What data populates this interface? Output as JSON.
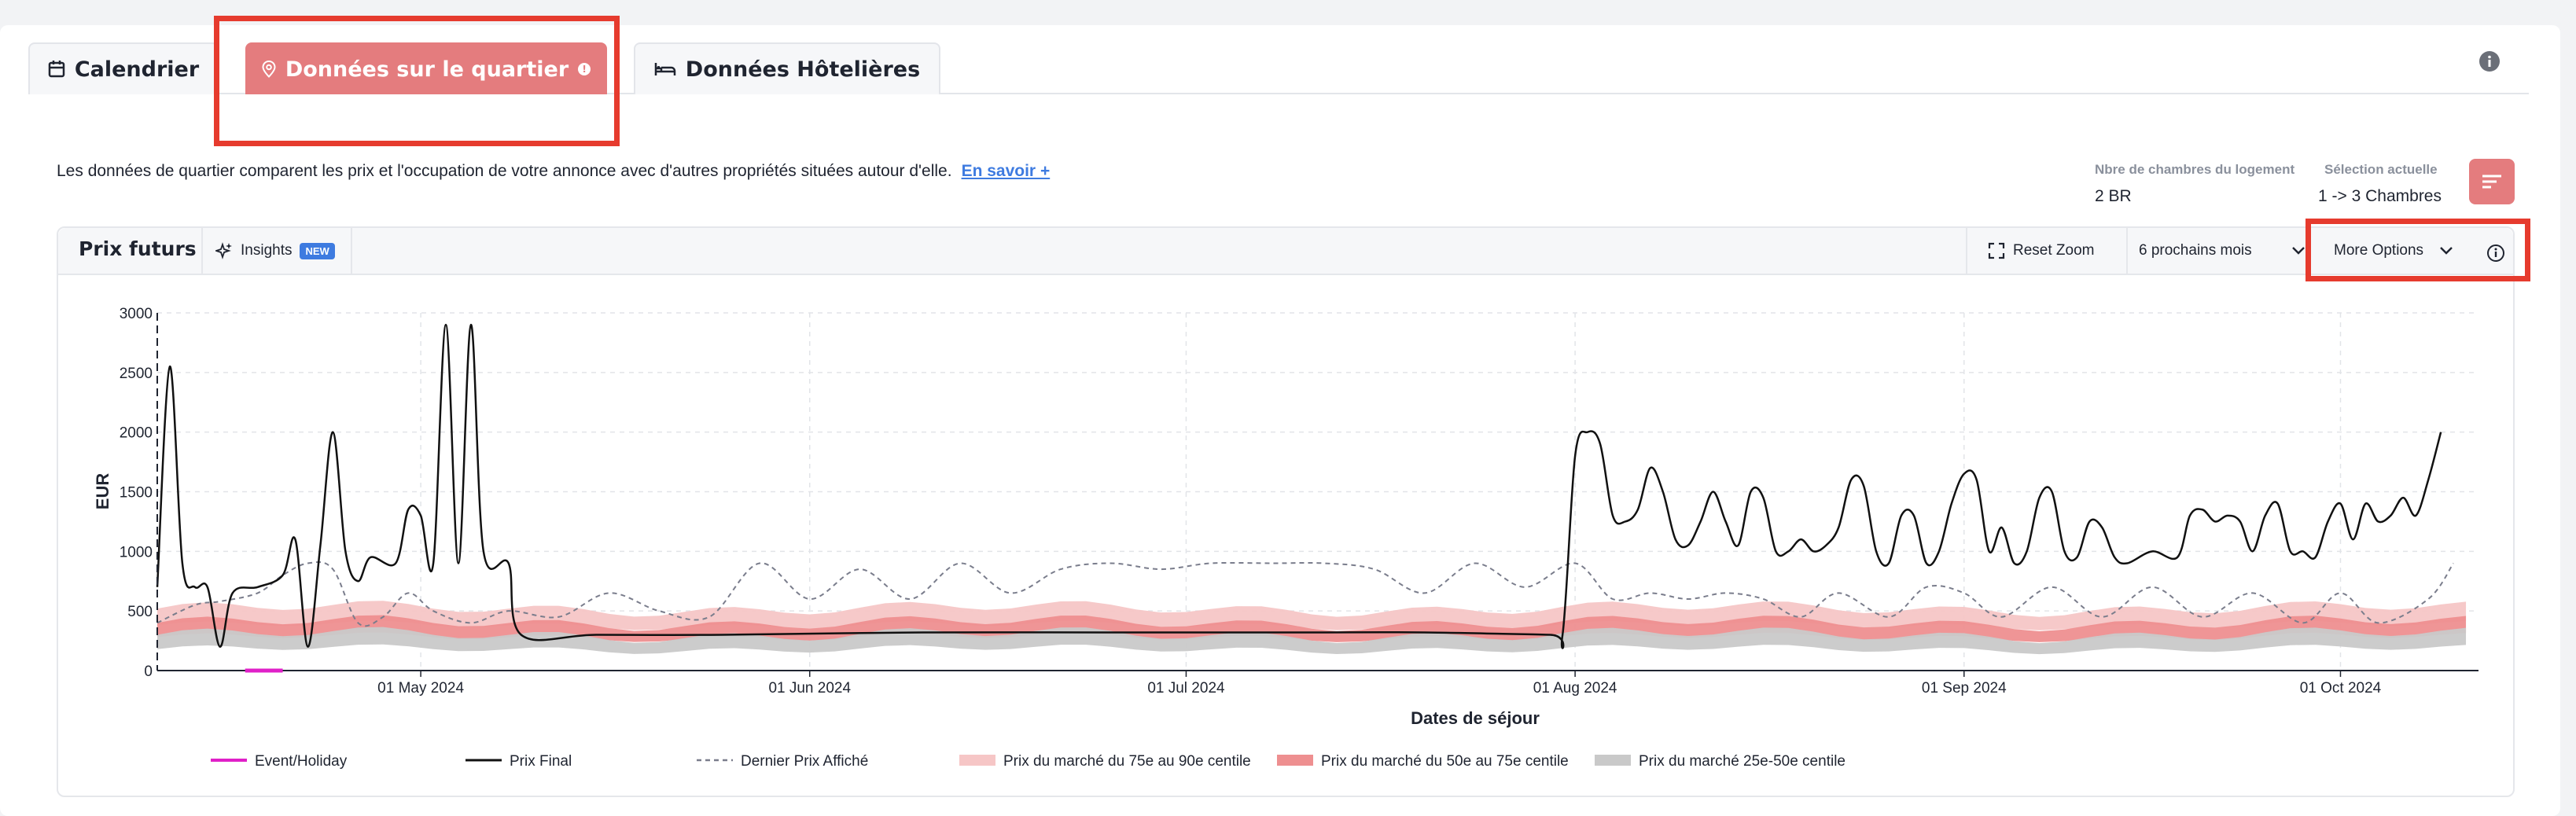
{
  "tabs": [
    {
      "label": "Calendrier",
      "icon": "calendar-icon",
      "active": false
    },
    {
      "label": "Données sur le quartier",
      "icon": "map-pin-icon",
      "active": true
    },
    {
      "label": "Données Hôtelières",
      "icon": "bed-icon",
      "active": false
    }
  ],
  "intro": {
    "text": "Les données de quartier comparent les prix et l'occupation de votre annonce avec d'autres propriétés situées autour d'elle.",
    "link": "En savoir +"
  },
  "meta": {
    "rooms_label": "Nbre de chambres du logement",
    "rooms_value": "2 BR",
    "selection_label": "Sélection actuelle",
    "selection_value": "1 -> 3 Chambres"
  },
  "panel": {
    "title": "Prix futurs",
    "insights_label": "Insights",
    "insights_badge": "NEW",
    "reset_zoom": "Reset Zoom",
    "period": "6 prochains mois",
    "more_options": "More Options"
  },
  "colors": {
    "accent": "#e47c7e",
    "highlight_box": "#e63b2e",
    "prix_final": "#111111",
    "dernier_prix": "#7a7d8c",
    "band_75_90": "#f6c6c6",
    "band_50_75": "#ee8f90",
    "band_25_50": "#c9c9c9",
    "event": "#e020c8"
  },
  "chart_data": {
    "type": "line",
    "xlabel": "Dates de séjour",
    "ylabel": "EUR",
    "x_range": [
      "2024-04-10",
      "2024-10-12"
    ],
    "ylim": [
      0,
      3000
    ],
    "yticks": [
      0,
      500,
      1000,
      1500,
      2000,
      2500,
      3000
    ],
    "xticks": [
      {
        "date": "2024-05-01",
        "label": "01 May 2024"
      },
      {
        "date": "2024-06-01",
        "label": "01 Jun 2024"
      },
      {
        "date": "2024-07-01",
        "label": "01 Jul 2024"
      },
      {
        "date": "2024-08-01",
        "label": "01 Aug 2024"
      },
      {
        "date": "2024-09-01",
        "label": "01 Sep 2024"
      },
      {
        "date": "2024-10-01",
        "label": "01 Oct 2024"
      }
    ],
    "grid": true,
    "legend_position": "bottom",
    "event_marker": {
      "from": "2024-04-17",
      "to": "2024-04-20"
    },
    "series": [
      {
        "name": "Prix Final",
        "style": "solid",
        "points": [
          [
            "2024-04-10",
            700
          ],
          [
            "2024-04-11",
            2550
          ],
          [
            "2024-04-12",
            900
          ],
          [
            "2024-04-13",
            700
          ],
          [
            "2024-04-14",
            700
          ],
          [
            "2024-04-15",
            200
          ],
          [
            "2024-04-16",
            650
          ],
          [
            "2024-04-18",
            700
          ],
          [
            "2024-04-20",
            800
          ],
          [
            "2024-04-21",
            1100
          ],
          [
            "2024-04-22",
            200
          ],
          [
            "2024-04-23",
            1050
          ],
          [
            "2024-04-24",
            2000
          ],
          [
            "2024-04-25",
            1000
          ],
          [
            "2024-04-26",
            750
          ],
          [
            "2024-04-27",
            950
          ],
          [
            "2024-04-29",
            900
          ],
          [
            "2024-04-30",
            1350
          ],
          [
            "2024-05-01",
            1300
          ],
          [
            "2024-05-02",
            900
          ],
          [
            "2024-05-03",
            2900
          ],
          [
            "2024-05-04",
            900
          ],
          [
            "2024-05-05",
            2900
          ],
          [
            "2024-05-06",
            1000
          ],
          [
            "2024-05-08",
            900
          ],
          [
            "2024-05-09",
            300
          ],
          [
            "2024-05-15",
            300
          ],
          [
            "2024-05-25",
            300
          ],
          [
            "2024-06-10",
            320
          ],
          [
            "2024-06-25",
            320
          ],
          [
            "2024-07-10",
            320
          ],
          [
            "2024-07-20",
            320
          ],
          [
            "2024-07-30",
            300
          ],
          [
            "2024-07-31",
            300
          ],
          [
            "2024-08-01",
            1800
          ],
          [
            "2024-08-02",
            2000
          ],
          [
            "2024-08-03",
            1900
          ],
          [
            "2024-08-04",
            1300
          ],
          [
            "2024-08-05",
            1250
          ],
          [
            "2024-08-06",
            1350
          ],
          [
            "2024-08-07",
            1700
          ],
          [
            "2024-08-08",
            1500
          ],
          [
            "2024-08-09",
            1100
          ],
          [
            "2024-08-10",
            1050
          ],
          [
            "2024-08-11",
            1250
          ],
          [
            "2024-08-12",
            1500
          ],
          [
            "2024-08-13",
            1250
          ],
          [
            "2024-08-14",
            1050
          ],
          [
            "2024-08-15",
            1500
          ],
          [
            "2024-08-16",
            1450
          ],
          [
            "2024-08-17",
            1000
          ],
          [
            "2024-08-18",
            1000
          ],
          [
            "2024-08-19",
            1100
          ],
          [
            "2024-08-20",
            1000
          ],
          [
            "2024-08-21",
            1050
          ],
          [
            "2024-08-22",
            1200
          ],
          [
            "2024-08-23",
            1600
          ],
          [
            "2024-08-24",
            1550
          ],
          [
            "2024-08-25",
            1000
          ],
          [
            "2024-08-26",
            900
          ],
          [
            "2024-08-27",
            1300
          ],
          [
            "2024-08-28",
            1300
          ],
          [
            "2024-08-29",
            900
          ],
          [
            "2024-08-30",
            1000
          ],
          [
            "2024-08-31",
            1400
          ],
          [
            "2024-09-01",
            1650
          ],
          [
            "2024-09-02",
            1600
          ],
          [
            "2024-09-03",
            1000
          ],
          [
            "2024-09-04",
            1200
          ],
          [
            "2024-09-05",
            900
          ],
          [
            "2024-09-06",
            1000
          ],
          [
            "2024-09-07",
            1450
          ],
          [
            "2024-09-08",
            1500
          ],
          [
            "2024-09-09",
            1000
          ],
          [
            "2024-09-10",
            950
          ],
          [
            "2024-09-11",
            1250
          ],
          [
            "2024-09-12",
            1200
          ],
          [
            "2024-09-13",
            950
          ],
          [
            "2024-09-14",
            900
          ],
          [
            "2024-09-16",
            1000
          ],
          [
            "2024-09-18",
            950
          ],
          [
            "2024-09-19",
            1300
          ],
          [
            "2024-09-20",
            1350
          ],
          [
            "2024-09-21",
            1250
          ],
          [
            "2024-09-22",
            1300
          ],
          [
            "2024-09-23",
            1250
          ],
          [
            "2024-09-24",
            1000
          ],
          [
            "2024-09-25",
            1300
          ],
          [
            "2024-09-26",
            1400
          ],
          [
            "2024-09-27",
            1000
          ],
          [
            "2024-09-28",
            1000
          ],
          [
            "2024-09-29",
            950
          ],
          [
            "2024-09-30",
            1250
          ],
          [
            "2024-10-01",
            1400
          ],
          [
            "2024-10-02",
            1100
          ],
          [
            "2024-10-03",
            1400
          ],
          [
            "2024-10-04",
            1250
          ],
          [
            "2024-10-05",
            1300
          ],
          [
            "2024-10-06",
            1450
          ],
          [
            "2024-10-07",
            1300
          ],
          [
            "2024-10-08",
            1600
          ],
          [
            "2024-10-09",
            2000
          ]
        ]
      },
      {
        "name": "Dernier Prix Affiché",
        "style": "dashed",
        "points": [
          [
            "2024-04-10",
            400
          ],
          [
            "2024-04-13",
            550
          ],
          [
            "2024-04-15",
            580
          ],
          [
            "2024-04-18",
            650
          ],
          [
            "2024-04-20",
            800
          ],
          [
            "2024-04-22",
            900
          ],
          [
            "2024-04-24",
            850
          ],
          [
            "2024-04-26",
            400
          ],
          [
            "2024-04-28",
            450
          ],
          [
            "2024-04-30",
            650
          ],
          [
            "2024-05-02",
            500
          ],
          [
            "2024-05-05",
            400
          ],
          [
            "2024-05-08",
            500
          ],
          [
            "2024-05-12",
            450
          ],
          [
            "2024-05-16",
            650
          ],
          [
            "2024-05-20",
            500
          ],
          [
            "2024-05-24",
            450
          ],
          [
            "2024-05-28",
            900
          ],
          [
            "2024-06-01",
            600
          ],
          [
            "2024-06-05",
            850
          ],
          [
            "2024-06-09",
            600
          ],
          [
            "2024-06-13",
            900
          ],
          [
            "2024-06-17",
            650
          ],
          [
            "2024-06-21",
            850
          ],
          [
            "2024-06-25",
            900
          ],
          [
            "2024-06-29",
            850
          ],
          [
            "2024-07-03",
            900
          ],
          [
            "2024-07-08",
            900
          ],
          [
            "2024-07-12",
            900
          ],
          [
            "2024-07-16",
            850
          ],
          [
            "2024-07-20",
            650
          ],
          [
            "2024-07-24",
            900
          ],
          [
            "2024-07-28",
            700
          ],
          [
            "2024-08-01",
            900
          ],
          [
            "2024-08-04",
            600
          ],
          [
            "2024-08-07",
            650
          ],
          [
            "2024-08-10",
            600
          ],
          [
            "2024-08-13",
            650
          ],
          [
            "2024-08-16",
            600
          ],
          [
            "2024-08-19",
            450
          ],
          [
            "2024-08-22",
            650
          ],
          [
            "2024-08-26",
            450
          ],
          [
            "2024-08-29",
            700
          ],
          [
            "2024-09-01",
            650
          ],
          [
            "2024-09-04",
            450
          ],
          [
            "2024-09-08",
            700
          ],
          [
            "2024-09-12",
            450
          ],
          [
            "2024-09-16",
            700
          ],
          [
            "2024-09-20",
            450
          ],
          [
            "2024-09-24",
            650
          ],
          [
            "2024-09-28",
            400
          ],
          [
            "2024-10-01",
            650
          ],
          [
            "2024-10-04",
            400
          ],
          [
            "2024-10-08",
            600
          ],
          [
            "2024-10-10",
            900
          ]
        ]
      },
      {
        "name": "Prix du marché du 75e au 90e centile",
        "style": "band",
        "lower": 380,
        "upper": 520
      },
      {
        "name": "Prix du marché du 50e au 75e centile",
        "style": "band",
        "lower": 280,
        "upper": 400
      },
      {
        "name": "Prix du marché 25e-50e centile",
        "style": "band",
        "lower": 180,
        "upper": 300
      },
      {
        "name": "Event/Holiday",
        "style": "marker"
      }
    ]
  }
}
